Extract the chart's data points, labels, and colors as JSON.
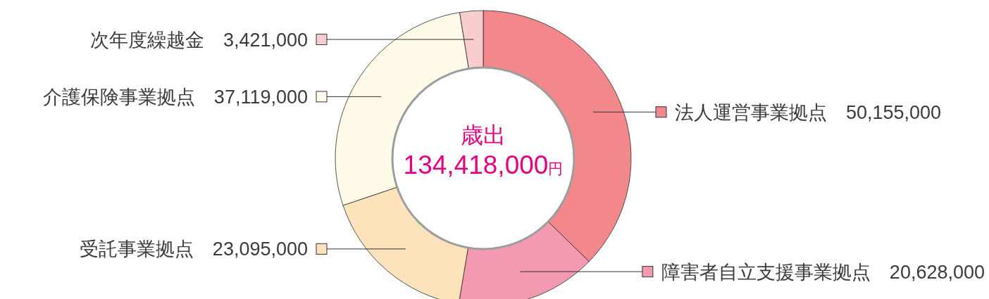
{
  "chart_data": {
    "type": "donut",
    "title": "歳出",
    "subtitle": "134,418,000円",
    "categories": [
      "法人運営事業拠点",
      "障害者自立支援事業拠点",
      "受託事業拠点",
      "介護保険事業拠点",
      "次年度繰越金"
    ],
    "values": [
      50155000,
      20628000,
      23095000,
      37119000,
      3421000
    ],
    "colors": [
      "#f2878c",
      "#f49ab0",
      "#fde3bb",
      "#fffbe8",
      "#f9cdd0"
    ],
    "value_labels": [
      "50,155,000",
      "20,628,000",
      "23,095,000",
      "37,119,000",
      "3,421,000"
    ],
    "legend": "top left"
  }
}
